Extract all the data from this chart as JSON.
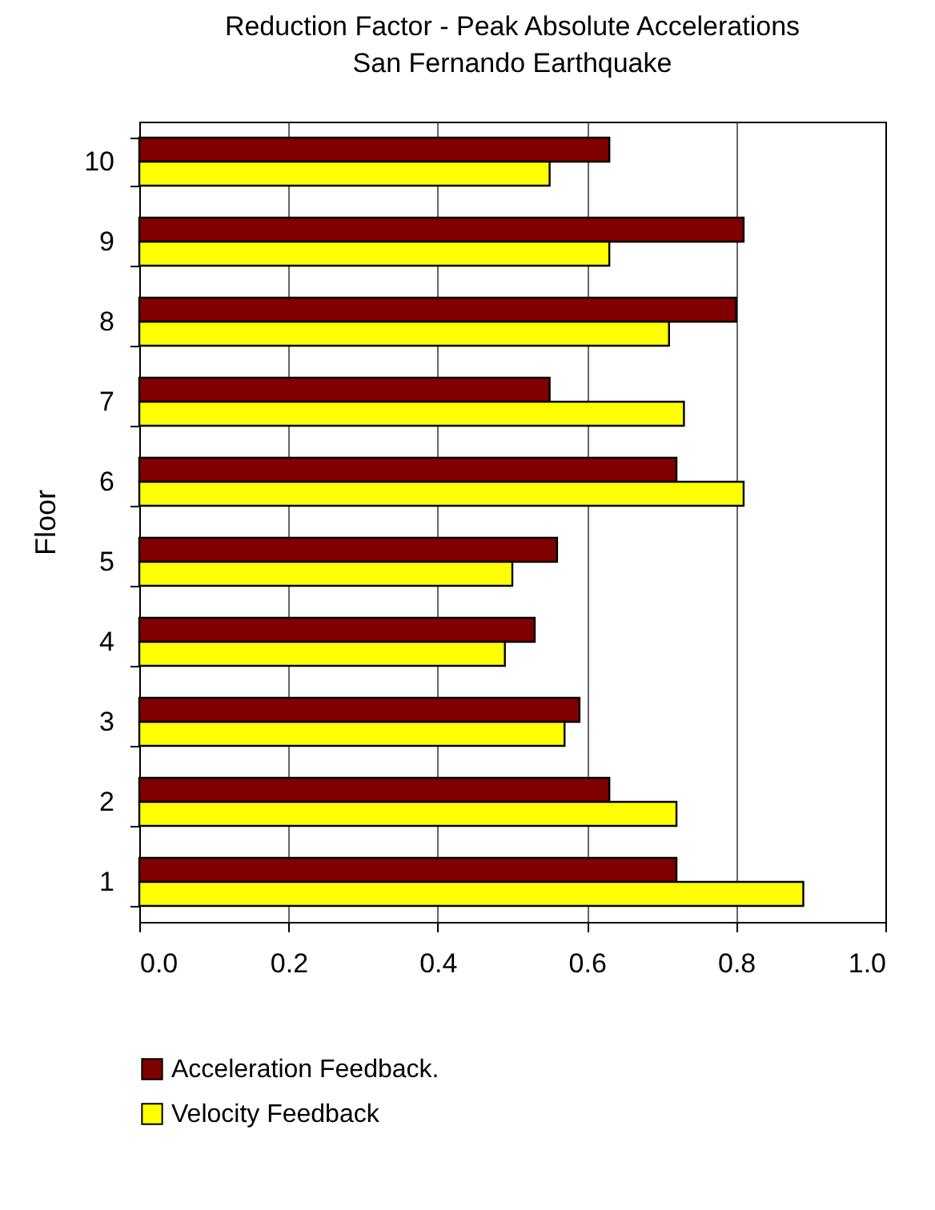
{
  "chart_data": {
    "type": "bar",
    "orientation": "horizontal",
    "title": "Reduction Factor - Peak Absolute Accelerations",
    "subtitle": "San Fernando Earthquake",
    "ylabel": "Floor",
    "categories": [
      "10",
      "9",
      "8",
      "7",
      "6",
      "5",
      "4",
      "3",
      "2",
      "1"
    ],
    "series": [
      {
        "name": "Acceleration Feedback.",
        "color": "#800000",
        "values": [
          0.63,
          0.81,
          0.8,
          0.55,
          0.72,
          0.56,
          0.53,
          0.59,
          0.63,
          0.72
        ]
      },
      {
        "name": "Velocity Feedback",
        "color": "#ffff00",
        "values": [
          0.55,
          0.63,
          0.71,
          0.73,
          0.81,
          0.5,
          0.49,
          0.57,
          0.72,
          0.89
        ]
      }
    ],
    "xlim": [
      0,
      1
    ],
    "xticks": [
      {
        "value": 0,
        "label": "0.0"
      },
      {
        "value": 0.2,
        "label": "0.2"
      },
      {
        "value": 0.4,
        "label": "0.4"
      },
      {
        "value": 0.6,
        "label": "0.6"
      },
      {
        "value": 0.8,
        "label": "0.8"
      },
      {
        "value": 1,
        "label": "1.0"
      }
    ],
    "grid": "x",
    "legend": "bottom"
  }
}
